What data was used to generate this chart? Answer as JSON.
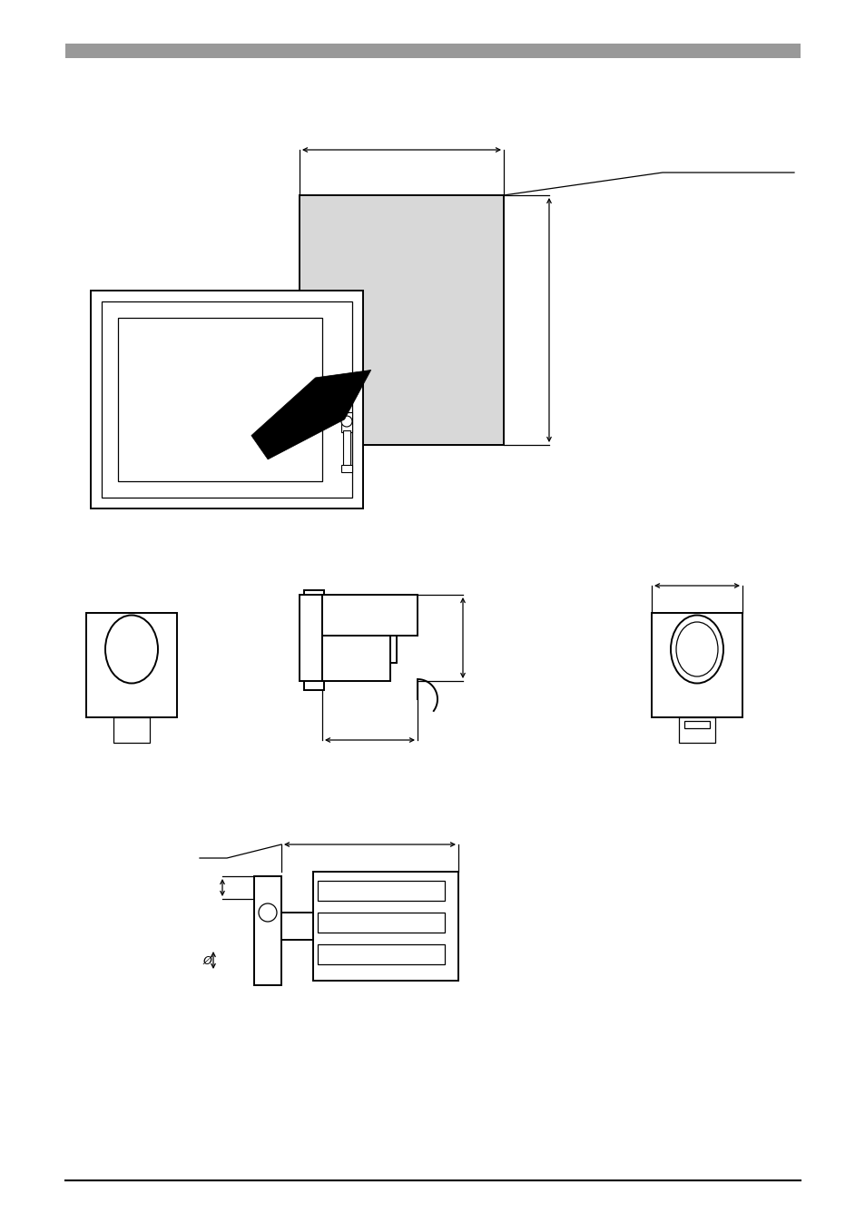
{
  "bg_color": "#ffffff",
  "header_color": "#999999",
  "footer_color": "#000000",
  "line_color": "#000000",
  "gray_fill": "#d8d8d8",
  "light_gray": "#cccccc"
}
